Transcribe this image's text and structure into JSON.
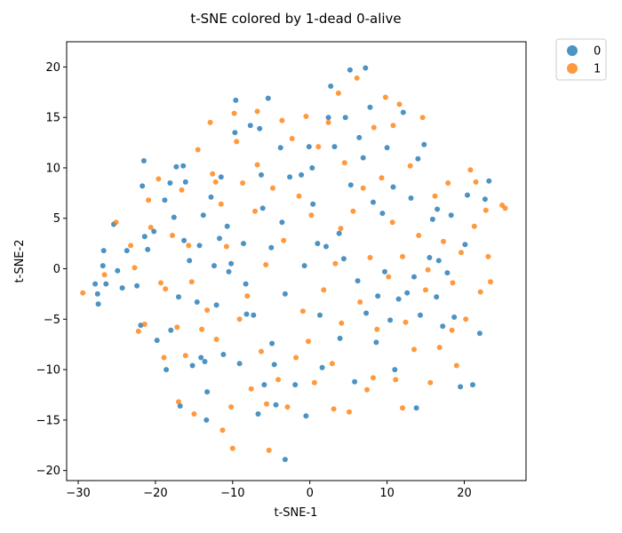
{
  "chart_data": {
    "type": "scatter",
    "title": "t-SNE colored by 1-dead 0-alive",
    "xlabel": "t-SNE-1",
    "ylabel": "t-SNE-2",
    "xlim": [
      -31.5,
      28
    ],
    "ylim": [
      -21,
      22.5
    ],
    "xticks": [
      -30,
      -20,
      -10,
      0,
      10,
      20
    ],
    "yticks": [
      -20,
      -15,
      -10,
      -5,
      0,
      5,
      10,
      15,
      20
    ],
    "grid": false,
    "legend_position": "outside-top-right",
    "series": [
      {
        "name": "0",
        "color": "#1f77b4",
        "points": [
          [
            -27.8,
            -1.5
          ],
          [
            -27.5,
            -2.5
          ],
          [
            -27.4,
            -3.5
          ],
          [
            -26.7,
            1.8
          ],
          [
            -26.8,
            0.3
          ],
          [
            -26.4,
            -1.5
          ],
          [
            -25.4,
            4.4
          ],
          [
            -24.9,
            -0.2
          ],
          [
            -24.3,
            -1.9
          ],
          [
            -23.7,
            1.8
          ],
          [
            -22.4,
            -1.7
          ],
          [
            -21.9,
            -5.6
          ],
          [
            -21.7,
            8.2
          ],
          [
            -21.5,
            10.7
          ],
          [
            -21.4,
            3.2
          ],
          [
            -21.0,
            1.9
          ],
          [
            -20.2,
            3.7
          ],
          [
            -18.8,
            6.8
          ],
          [
            -18.1,
            8.5
          ],
          [
            -18.6,
            -10.0
          ],
          [
            -17.6,
            5.1
          ],
          [
            -17.3,
            10.1
          ],
          [
            -17.0,
            -2.8
          ],
          [
            -16.8,
            -13.6
          ],
          [
            -16.1,
            8.6
          ],
          [
            -16.3,
            2.8
          ],
          [
            -15.6,
            0.8
          ],
          [
            -15.2,
            -9.6
          ],
          [
            -14.6,
            -3.3
          ],
          [
            -14.3,
            2.3
          ],
          [
            -13.8,
            5.3
          ],
          [
            -13.6,
            -9.2
          ],
          [
            -13.4,
            -15.0
          ],
          [
            -13.3,
            -12.2
          ],
          [
            -12.8,
            7.1
          ],
          [
            -12.4,
            0.3
          ],
          [
            -12.1,
            -3.6
          ],
          [
            -11.7,
            3.0
          ],
          [
            -11.5,
            9.1
          ],
          [
            -11.2,
            -8.5
          ],
          [
            -10.7,
            4.2
          ],
          [
            -10.5,
            -0.3
          ],
          [
            -10.2,
            0.5
          ],
          [
            -9.6,
            16.7
          ],
          [
            -9.7,
            13.5
          ],
          [
            -9.1,
            -9.4
          ],
          [
            -8.6,
            2.5
          ],
          [
            -8.3,
            -1.5
          ],
          [
            -7.7,
            14.2
          ],
          [
            -7.3,
            -4.6
          ],
          [
            -6.7,
            -14.4
          ],
          [
            -6.5,
            13.9
          ],
          [
            -6.3,
            9.3
          ],
          [
            -6.1,
            6.0
          ],
          [
            -5.4,
            16.9
          ],
          [
            -5.0,
            2.1
          ],
          [
            -4.9,
            -7.4
          ],
          [
            -4.6,
            -9.5
          ],
          [
            -4.4,
            -13.5
          ],
          [
            -3.8,
            12.0
          ],
          [
            -3.6,
            4.6
          ],
          [
            -3.2,
            -2.5
          ],
          [
            -3.2,
            -18.9
          ],
          [
            -2.6,
            9.1
          ],
          [
            -1.9,
            -11.5
          ],
          [
            -1.1,
            9.3
          ],
          [
            -0.7,
            0.3
          ],
          [
            -0.5,
            -14.6
          ],
          [
            -0.1,
            12.1
          ],
          [
            0.4,
            6.4
          ],
          [
            1.0,
            2.5
          ],
          [
            1.3,
            -4.6
          ],
          [
            1.6,
            -9.8
          ],
          [
            2.1,
            2.2
          ],
          [
            2.7,
            18.1
          ],
          [
            3.2,
            12.1
          ],
          [
            3.8,
            3.5
          ],
          [
            3.9,
            -6.9
          ],
          [
            4.6,
            15.0
          ],
          [
            5.2,
            19.7
          ],
          [
            5.3,
            8.3
          ],
          [
            5.8,
            -11.2
          ],
          [
            6.2,
            -1.2
          ],
          [
            6.4,
            13.0
          ],
          [
            6.9,
            11.0
          ],
          [
            7.3,
            -4.4
          ],
          [
            7.8,
            16.0
          ],
          [
            8.2,
            6.6
          ],
          [
            8.6,
            -7.3
          ],
          [
            8.8,
            -2.7
          ],
          [
            9.4,
            5.5
          ],
          [
            9.7,
            -0.3
          ],
          [
            10.0,
            12.0
          ],
          [
            10.4,
            -5.1
          ],
          [
            10.8,
            8.1
          ],
          [
            11.5,
            -3.0
          ],
          [
            12.1,
            15.5
          ],
          [
            12.6,
            -2.4
          ],
          [
            13.1,
            7.0
          ],
          [
            13.5,
            -0.8
          ],
          [
            14.0,
            10.9
          ],
          [
            14.3,
            -4.6
          ],
          [
            14.8,
            12.3
          ],
          [
            15.5,
            1.1
          ],
          [
            15.9,
            4.9
          ],
          [
            16.5,
            5.9
          ],
          [
            16.7,
            0.8
          ],
          [
            17.2,
            -5.7
          ],
          [
            17.8,
            -0.4
          ],
          [
            18.3,
            5.3
          ],
          [
            18.7,
            -4.8
          ],
          [
            19.5,
            -11.7
          ],
          [
            20.4,
            7.3
          ],
          [
            21.1,
            -11.5
          ],
          [
            22.0,
            -6.4
          ],
          [
            22.7,
            6.9
          ],
          [
            23.2,
            8.7
          ],
          [
            -16.4,
            10.2
          ],
          [
            -18.0,
            -6.1
          ],
          [
            -19.8,
            -7.1
          ],
          [
            -14.1,
            -8.8
          ],
          [
            -8.2,
            -4.5
          ],
          [
            -5.9,
            -11.5
          ],
          [
            0.3,
            10.0
          ],
          [
            2.4,
            15.0
          ],
          [
            4.4,
            1.0
          ],
          [
            7.2,
            19.9
          ],
          [
            11.0,
            -10.0
          ],
          [
            13.8,
            -13.8
          ],
          [
            16.4,
            -2.8
          ],
          [
            20.1,
            2.4
          ]
        ]
      },
      {
        "name": "1",
        "color": "#ff7f0e",
        "points": [
          [
            -29.4,
            -2.4
          ],
          [
            -26.6,
            -0.6
          ],
          [
            -25.1,
            4.6
          ],
          [
            -23.2,
            2.3
          ],
          [
            -22.7,
            0.1
          ],
          [
            -22.2,
            -6.2
          ],
          [
            -21.4,
            -5.5
          ],
          [
            -20.9,
            6.8
          ],
          [
            -20.6,
            4.1
          ],
          [
            -19.6,
            8.9
          ],
          [
            -19.3,
            -1.4
          ],
          [
            -18.7,
            -2.0
          ],
          [
            -18.9,
            -8.8
          ],
          [
            -17.8,
            3.3
          ],
          [
            -17.2,
            -5.8
          ],
          [
            -16.6,
            7.8
          ],
          [
            -16.1,
            -8.6
          ],
          [
            -15.7,
            2.3
          ],
          [
            -15.3,
            -1.3
          ],
          [
            -15.0,
            -14.4
          ],
          [
            -14.5,
            11.8
          ],
          [
            -14.0,
            -6.0
          ],
          [
            -13.3,
            -4.1
          ],
          [
            -12.9,
            14.5
          ],
          [
            -12.6,
            9.4
          ],
          [
            -12.1,
            -7.0
          ],
          [
            -11.5,
            6.4
          ],
          [
            -11.3,
            -16.0
          ],
          [
            -10.8,
            2.2
          ],
          [
            -10.2,
            -13.7
          ],
          [
            -9.8,
            15.4
          ],
          [
            -9.5,
            12.6
          ],
          [
            -9.1,
            -5.0
          ],
          [
            -8.7,
            8.5
          ],
          [
            -8.1,
            -2.7
          ],
          [
            -7.6,
            -11.9
          ],
          [
            -7.1,
            5.7
          ],
          [
            -6.8,
            15.6
          ],
          [
            -6.3,
            -8.2
          ],
          [
            -5.7,
            0.4
          ],
          [
            -5.3,
            -18.0
          ],
          [
            -4.8,
            8.0
          ],
          [
            -4.1,
            -11.0
          ],
          [
            -3.6,
            14.7
          ],
          [
            -3.4,
            2.8
          ],
          [
            -2.9,
            -13.7
          ],
          [
            -2.3,
            12.9
          ],
          [
            -1.8,
            -8.8
          ],
          [
            -1.4,
            7.2
          ],
          [
            -0.9,
            -4.2
          ],
          [
            -0.5,
            15.1
          ],
          [
            0.2,
            5.3
          ],
          [
            0.6,
            -11.3
          ],
          [
            1.1,
            12.1
          ],
          [
            1.8,
            -2.1
          ],
          [
            2.4,
            14.5
          ],
          [
            2.9,
            -9.4
          ],
          [
            3.3,
            0.5
          ],
          [
            3.7,
            17.4
          ],
          [
            4.1,
            -5.4
          ],
          [
            4.5,
            10.5
          ],
          [
            5.1,
            -14.2
          ],
          [
            5.6,
            5.7
          ],
          [
            6.1,
            18.9
          ],
          [
            6.5,
            -3.3
          ],
          [
            6.9,
            8.0
          ],
          [
            7.4,
            -12.0
          ],
          [
            7.8,
            1.1
          ],
          [
            8.3,
            14.0
          ],
          [
            8.7,
            -6.0
          ],
          [
            9.3,
            9.0
          ],
          [
            9.8,
            17.0
          ],
          [
            10.2,
            -0.8
          ],
          [
            10.7,
            4.6
          ],
          [
            11.1,
            -11.0
          ],
          [
            11.6,
            16.3
          ],
          [
            12.0,
            1.2
          ],
          [
            12.4,
            -5.3
          ],
          [
            13.0,
            10.2
          ],
          [
            13.5,
            -8.0
          ],
          [
            14.1,
            3.3
          ],
          [
            14.6,
            15.0
          ],
          [
            15.0,
            -2.1
          ],
          [
            15.6,
            -11.3
          ],
          [
            16.2,
            7.2
          ],
          [
            16.8,
            -7.8
          ],
          [
            17.3,
            2.7
          ],
          [
            17.9,
            8.5
          ],
          [
            18.5,
            -1.4
          ],
          [
            19.0,
            -9.6
          ],
          [
            19.6,
            1.6
          ],
          [
            20.2,
            -5.0
          ],
          [
            20.8,
            9.8
          ],
          [
            21.3,
            4.2
          ],
          [
            22.1,
            -2.3
          ],
          [
            22.8,
            5.8
          ],
          [
            23.4,
            -1.3
          ],
          [
            24.9,
            6.3
          ],
          [
            25.3,
            6.0
          ],
          [
            23.1,
            1.2
          ],
          [
            -17.0,
            -13.2
          ],
          [
            -10.0,
            -17.8
          ],
          [
            -5.6,
            -13.4
          ],
          [
            -0.2,
            -7.2
          ],
          [
            3.1,
            -13.9
          ],
          [
            8.2,
            -10.8
          ],
          [
            12.0,
            -13.8
          ],
          [
            18.4,
            -6.1
          ],
          [
            21.5,
            8.6
          ],
          [
            -12.2,
            8.6
          ],
          [
            -6.8,
            10.3
          ],
          [
            4.0,
            4.0
          ],
          [
            10.8,
            14.2
          ],
          [
            15.3,
            -0.1
          ]
        ]
      }
    ]
  }
}
